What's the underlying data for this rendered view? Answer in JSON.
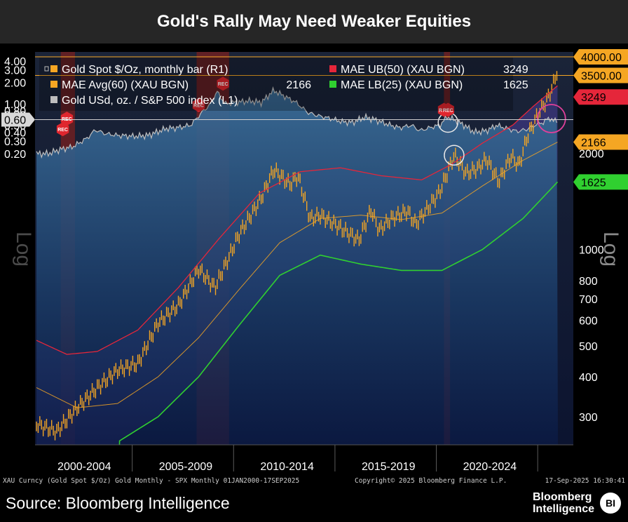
{
  "title": "Gold's Rally May Need Weaker Equities",
  "legend": [
    {
      "label": "Gold Spot $/Oz, monthly bar (R1)",
      "value": "",
      "color": "#f5a623",
      "prefix": "□"
    },
    {
      "label": "MAE Avg(60) (XAU BGN)",
      "value": "2166",
      "color": "#f5a623",
      "prefix": ""
    },
    {
      "label": "Gold USd, oz. / S&P 500 index (L1)",
      "value": "",
      "color": "#bdbdbd",
      "prefix": ""
    },
    {
      "label": "MAE UB(50) (XAU BGN)",
      "value": "3249",
      "color": "#e5263a",
      "prefix": ""
    },
    {
      "label": "MAE LB(25) (XAU BGN)",
      "value": "1625",
      "color": "#30d030",
      "prefix": ""
    }
  ],
  "left_axis_title": "Log",
  "right_axis_title": "Log",
  "right_tags": [
    {
      "value": "4000.00",
      "color": "#f5a623"
    },
    {
      "value": "3500.00",
      "color": "#f5a623"
    },
    {
      "value": "3249",
      "color": "#e5263a"
    },
    {
      "value": "2166",
      "color": "#f5a623"
    },
    {
      "value": "1625",
      "color": "#30d030"
    }
  ],
  "left_tag": "0.60",
  "rec_label": "REC",
  "footer": {
    "left": "XAU Curncy (Gold Spot  $/Oz) Gold Monthly - SPX  Monthly 01JAN2000-17SEP2025",
    "center": "Copyright© 2025 Bloomberg Finance L.P.",
    "right": "17-Sep-2025 16:30:41"
  },
  "source": "Source: Bloomberg Intelligence",
  "brand": {
    "line1": "Bloomberg",
    "line2": "Intelligence",
    "badge": "BI"
  },
  "colors": {
    "gold": "#f5a623",
    "upper_band": "#e5263a",
    "lower_band": "#30d030",
    "ratio": "#bdbdbd",
    "recession": "#7a1f1f",
    "band_fill": "#4a3f9a"
  },
  "chart_data": {
    "type": "line",
    "x_periods": [
      "2000-2004",
      "2005-2009",
      "2010-2014",
      "2015-2019",
      "2020-2024"
    ],
    "left_axis": {
      "scale": "log",
      "ticks": [
        0.2,
        0.3,
        0.4,
        0.5,
        0.6,
        0.7,
        0.8,
        1.0,
        2.0,
        3.0,
        4.0
      ],
      "tick_labels": [
        "0.20",
        "0.30",
        "0.40",
        "0.50",
        "0.60",
        "0.70",
        "0.80",
        "1.00",
        "2.00",
        "3.00",
        "4.00"
      ]
    },
    "right_axis": {
      "scale": "log",
      "ticks": [
        300,
        400,
        500,
        600,
        700,
        800,
        1000,
        2000,
        3000
      ]
    },
    "horizontal_lines": {
      "left_ratio": 0.6,
      "right_gold": [
        3500,
        4000
      ]
    },
    "recessions": [
      [
        2001.2,
        2001.9
      ],
      [
        2007.9,
        2009.5
      ],
      [
        2020.1,
        2020.4
      ]
    ],
    "series": [
      {
        "name": "Gold Spot $/Oz, monthly bar (R1)",
        "axis": "right",
        "points": [
          [
            2000,
            285
          ],
          [
            2001,
            270
          ],
          [
            2002,
            320
          ],
          [
            2003,
            370
          ],
          [
            2004,
            420
          ],
          [
            2005,
            440
          ],
          [
            2006,
            590
          ],
          [
            2007,
            670
          ],
          [
            2008,
            870
          ],
          [
            2008.8,
            760
          ],
          [
            2009.5,
            950
          ],
          [
            2010,
            1120
          ],
          [
            2010.8,
            1350
          ],
          [
            2011.2,
            1500
          ],
          [
            2011.7,
            1780
          ],
          [
            2012.5,
            1600
          ],
          [
            2012.9,
            1700
          ],
          [
            2013.5,
            1250
          ],
          [
            2014,
            1280
          ],
          [
            2014.9,
            1180
          ],
          [
            2015.9,
            1070
          ],
          [
            2016.5,
            1330
          ],
          [
            2016.9,
            1150
          ],
          [
            2017.5,
            1250
          ],
          [
            2018.3,
            1320
          ],
          [
            2018.7,
            1200
          ],
          [
            2019.5,
            1400
          ],
          [
            2019.9,
            1520
          ],
          [
            2020.6,
            1970
          ],
          [
            2021.2,
            1730
          ],
          [
            2021.8,
            1800
          ],
          [
            2022.2,
            1920
          ],
          [
            2022.8,
            1630
          ],
          [
            2023.4,
            1960
          ],
          [
            2023.8,
            1830
          ],
          [
            2024.2,
            2250
          ],
          [
            2024.8,
            2700
          ],
          [
            2025.2,
            2950
          ],
          [
            2025.5,
            3300
          ],
          [
            2025.7,
            3650
          ]
        ]
      },
      {
        "name": "Gold USd, oz. / S&P 500 index (L1)",
        "axis": "left",
        "points": [
          [
            2000,
            0.2
          ],
          [
            2000.6,
            0.2
          ],
          [
            2001.2,
            0.23
          ],
          [
            2001.8,
            0.25
          ],
          [
            2002.5,
            0.33
          ],
          [
            2002.9,
            0.43
          ],
          [
            2003.4,
            0.38
          ],
          [
            2004,
            0.36
          ],
          [
            2004.8,
            0.35
          ],
          [
            2005.5,
            0.36
          ],
          [
            2006.4,
            0.45
          ],
          [
            2006.9,
            0.46
          ],
          [
            2007.6,
            0.5
          ],
          [
            2008.2,
            0.78
          ],
          [
            2008.6,
            1.0
          ],
          [
            2008.9,
            1.5
          ],
          [
            2009.3,
            1.0
          ],
          [
            2009.8,
            1.05
          ],
          [
            2010.5,
            1.1
          ],
          [
            2011.1,
            1.05
          ],
          [
            2011.7,
            1.55
          ],
          [
            2012.3,
            1.25
          ],
          [
            2012.8,
            1.05
          ],
          [
            2013.4,
            0.75
          ],
          [
            2013.9,
            0.68
          ],
          [
            2014.5,
            0.62
          ],
          [
            2015.1,
            0.56
          ],
          [
            2015.6,
            0.55
          ],
          [
            2016.2,
            0.65
          ],
          [
            2016.7,
            0.6
          ],
          [
            2017.3,
            0.52
          ],
          [
            2017.9,
            0.46
          ],
          [
            2018.5,
            0.5
          ],
          [
            2018.9,
            0.42
          ],
          [
            2019.6,
            0.48
          ],
          [
            2019.9,
            0.5
          ],
          [
            2020.25,
            0.66
          ],
          [
            2020.6,
            0.6
          ],
          [
            2021.1,
            0.5
          ],
          [
            2021.6,
            0.4
          ],
          [
            2022.2,
            0.42
          ],
          [
            2022.7,
            0.5
          ],
          [
            2023.2,
            0.45
          ],
          [
            2023.7,
            0.41
          ],
          [
            2024.2,
            0.44
          ],
          [
            2024.7,
            0.52
          ],
          [
            2025.0,
            0.55
          ],
          [
            2025.3,
            0.64
          ],
          [
            2025.5,
            0.57
          ],
          [
            2025.7,
            0.6
          ]
        ]
      },
      {
        "name": "MAE Avg(60) (XAU BGN)",
        "axis": "right",
        "points": [
          [
            2000,
            370
          ],
          [
            2002,
            320
          ],
          [
            2004,
            330
          ],
          [
            2006,
            400
          ],
          [
            2008,
            530
          ],
          [
            2010,
            750
          ],
          [
            2012,
            1050
          ],
          [
            2014,
            1250
          ],
          [
            2016,
            1280
          ],
          [
            2018,
            1240
          ],
          [
            2020,
            1300
          ],
          [
            2022,
            1580
          ],
          [
            2024,
            1900
          ],
          [
            2025.7,
            2166
          ]
        ]
      },
      {
        "name": "MAE UB(50) (XAU BGN)",
        "axis": "right",
        "points": [
          [
            2000,
            520
          ],
          [
            2001.5,
            470
          ],
          [
            2003,
            480
          ],
          [
            2005,
            560
          ],
          [
            2007,
            760
          ],
          [
            2009,
            1080
          ],
          [
            2011,
            1500
          ],
          [
            2013,
            1750
          ],
          [
            2015,
            1800
          ],
          [
            2017,
            1700
          ],
          [
            2019,
            1650
          ],
          [
            2020.5,
            1850
          ],
          [
            2022,
            2150
          ],
          [
            2023.5,
            2450
          ],
          [
            2024.5,
            2800
          ],
          [
            2025.7,
            3249
          ]
        ]
      },
      {
        "name": "MAE LB(25) (XAU BGN)",
        "axis": "right",
        "points": [
          [
            2004,
            250
          ],
          [
            2006,
            300
          ],
          [
            2008,
            400
          ],
          [
            2010,
            580
          ],
          [
            2012,
            830
          ],
          [
            2014,
            960
          ],
          [
            2016,
            900
          ],
          [
            2018,
            860
          ],
          [
            2020,
            860
          ],
          [
            2022,
            1000
          ],
          [
            2024,
            1250
          ],
          [
            2025.7,
            1625
          ]
        ]
      }
    ]
  }
}
